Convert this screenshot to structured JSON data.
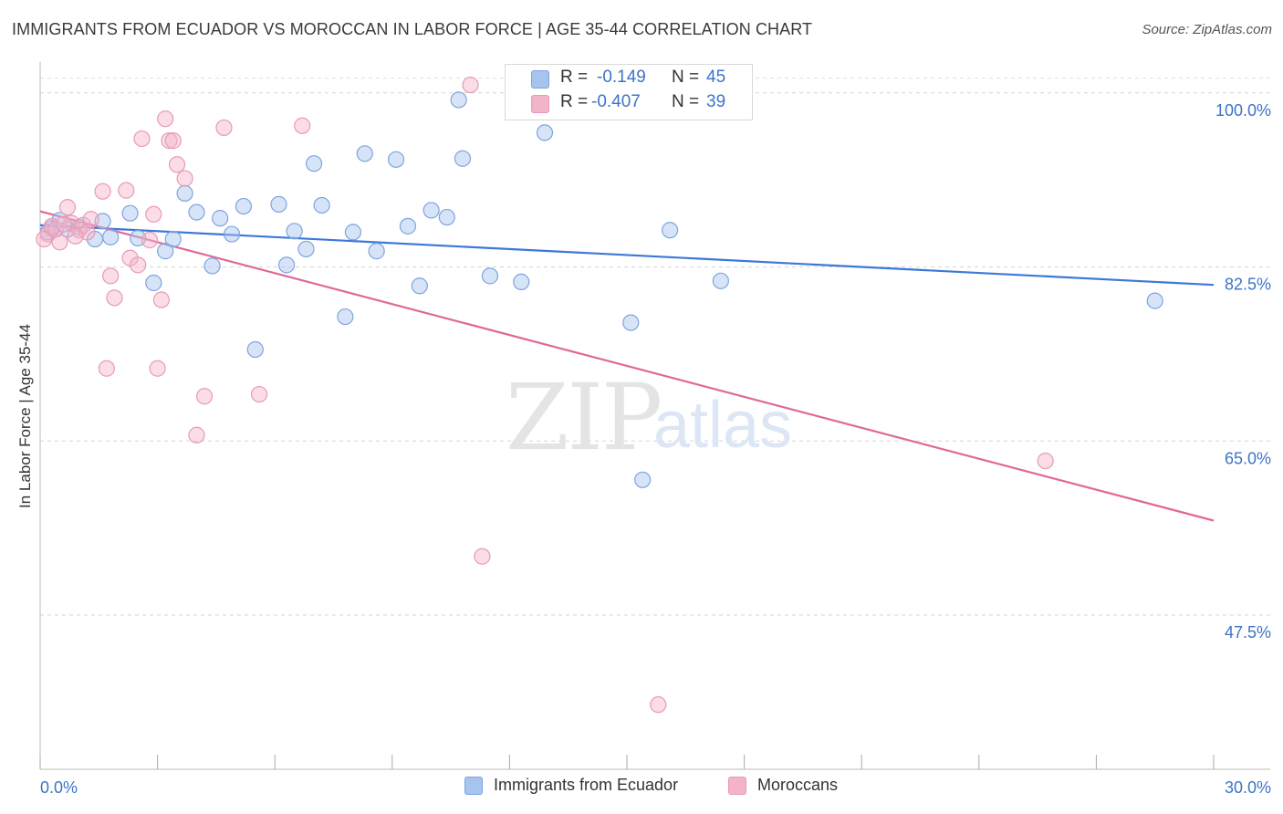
{
  "title": "IMMIGRANTS FROM ECUADOR VS MOROCCAN IN LABOR FORCE | AGE 35-44 CORRELATION CHART",
  "source": "Source: ZipAtlas.com",
  "watermark": {
    "zip": "ZIP",
    "atlas": "atlas"
  },
  "stats": {
    "r_label": "R =",
    "n_label": "N =",
    "rows": [
      {
        "r": "-0.149",
        "n": "45",
        "color": "#a7c4ef"
      },
      {
        "r": "-0.407",
        "n": "39",
        "color": "#f3b3c8"
      }
    ]
  },
  "legend": [
    {
      "label": "Immigrants from Ecuador",
      "color": "#a7c4ef"
    },
    {
      "label": "Moroccans",
      "color": "#f3b3c8"
    }
  ],
  "chart_data": {
    "type": "scatter",
    "xlabel": "",
    "ylabel": "In Labor Force | Age 35-44",
    "xlim": [
      0,
      30
    ],
    "ylim": [
      32,
      102
    ],
    "x_tick_labels": [
      "0.0%",
      "30.0%"
    ],
    "y_ticks": [
      47.5,
      65.0,
      82.5,
      100.0
    ],
    "y_tick_labels": [
      "47.5%",
      "65.0%",
      "82.5%",
      "100.0%"
    ],
    "grid": "horizontal-dashed",
    "legend_position": "bottom-center",
    "series": [
      {
        "name": "Immigrants from Ecuador",
        "color": "#3c78d8",
        "fill": "#a7c4ef",
        "trend": {
          "x": [
            0,
            30
          ],
          "y": [
            86.7,
            80.7
          ]
        },
        "points": [
          [
            0.2,
            86.0
          ],
          [
            0.3,
            86.4
          ],
          [
            0.5,
            87.2
          ],
          [
            0.7,
            86.3
          ],
          [
            1.0,
            86.5
          ],
          [
            1.4,
            85.3
          ],
          [
            1.6,
            87.1
          ],
          [
            1.8,
            85.5
          ],
          [
            2.3,
            87.9
          ],
          [
            2.5,
            85.4
          ],
          [
            2.9,
            80.9
          ],
          [
            3.2,
            84.1
          ],
          [
            3.4,
            85.3
          ],
          [
            3.7,
            89.9
          ],
          [
            4.0,
            88.0
          ],
          [
            4.4,
            82.6
          ],
          [
            4.6,
            87.4
          ],
          [
            4.9,
            85.8
          ],
          [
            5.2,
            88.6
          ],
          [
            5.5,
            74.2
          ],
          [
            6.1,
            88.8
          ],
          [
            6.3,
            82.7
          ],
          [
            6.5,
            86.1
          ],
          [
            6.8,
            84.3
          ],
          [
            7.0,
            92.9
          ],
          [
            7.2,
            88.7
          ],
          [
            7.8,
            77.5
          ],
          [
            8.0,
            86.0
          ],
          [
            8.3,
            93.9
          ],
          [
            8.6,
            84.1
          ],
          [
            9.1,
            93.3
          ],
          [
            9.4,
            86.6
          ],
          [
            9.7,
            80.6
          ],
          [
            10.0,
            88.2
          ],
          [
            10.4,
            87.5
          ],
          [
            10.8,
            93.4
          ],
          [
            10.7,
            99.3
          ],
          [
            11.5,
            81.6
          ],
          [
            12.3,
            81.0
          ],
          [
            12.9,
            96.0
          ],
          [
            15.1,
            76.9
          ],
          [
            15.4,
            61.1
          ],
          [
            16.1,
            86.2
          ],
          [
            17.4,
            81.1
          ],
          [
            28.5,
            79.1
          ]
        ]
      },
      {
        "name": "Moroccans",
        "color": "#e0689a",
        "fill": "#f3b3c8",
        "trend": {
          "x": [
            0,
            30
          ],
          "y": [
            88.1,
            57.0
          ]
        },
        "points": [
          [
            0.2,
            85.8
          ],
          [
            0.3,
            86.6
          ],
          [
            0.5,
            85.0
          ],
          [
            0.7,
            88.5
          ],
          [
            0.8,
            86.9
          ],
          [
            1.0,
            86.2
          ],
          [
            1.1,
            86.7
          ],
          [
            1.3,
            87.3
          ],
          [
            1.6,
            90.1
          ],
          [
            1.8,
            81.6
          ],
          [
            1.9,
            79.4
          ],
          [
            2.2,
            90.2
          ],
          [
            2.3,
            83.4
          ],
          [
            2.5,
            82.7
          ],
          [
            2.6,
            95.4
          ],
          [
            2.8,
            85.2
          ],
          [
            2.9,
            87.8
          ],
          [
            3.0,
            72.3
          ],
          [
            3.1,
            79.2
          ],
          [
            3.2,
            97.4
          ],
          [
            3.3,
            95.2
          ],
          [
            3.4,
            95.2
          ],
          [
            3.5,
            92.8
          ],
          [
            3.7,
            91.4
          ],
          [
            4.0,
            65.6
          ],
          [
            4.2,
            69.5
          ],
          [
            4.7,
            96.5
          ],
          [
            5.6,
            69.7
          ],
          [
            6.7,
            96.7
          ],
          [
            1.7,
            72.3
          ],
          [
            11.0,
            100.8
          ],
          [
            11.3,
            53.4
          ],
          [
            15.8,
            38.5
          ],
          [
            25.7,
            63.0
          ],
          [
            0.1,
            85.3
          ],
          [
            0.4,
            86.3
          ],
          [
            0.6,
            86.8
          ],
          [
            1.2,
            86.0
          ],
          [
            0.9,
            85.6
          ]
        ]
      }
    ]
  }
}
